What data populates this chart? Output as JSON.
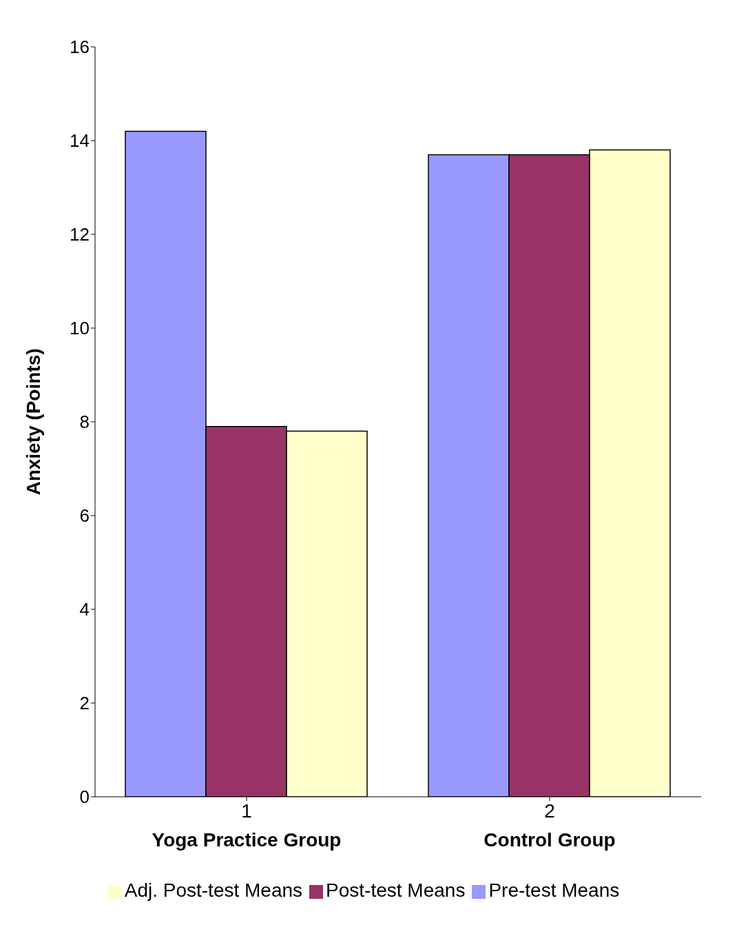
{
  "chart_data": {
    "type": "bar",
    "ylabel": "Anxiety (Points)",
    "categories": [
      "1\nYoga Practice Group",
      "2\nControl Group"
    ],
    "series": [
      {
        "name": "Pre-test Means",
        "color": "#9999ff",
        "values": [
          14.2,
          13.7
        ]
      },
      {
        "name": "Post-test Means",
        "color": "#993366",
        "values": [
          7.9,
          13.7
        ]
      },
      {
        "name": "Adj. Post-test Means",
        "color": "#ffffcc",
        "values": [
          7.8,
          13.8
        ]
      }
    ],
    "ylim": [
      0,
      16
    ],
    "yticks": [
      0,
      2,
      4,
      6,
      8,
      10,
      12,
      14,
      16
    ],
    "grid": false,
    "legend": "bottom"
  }
}
